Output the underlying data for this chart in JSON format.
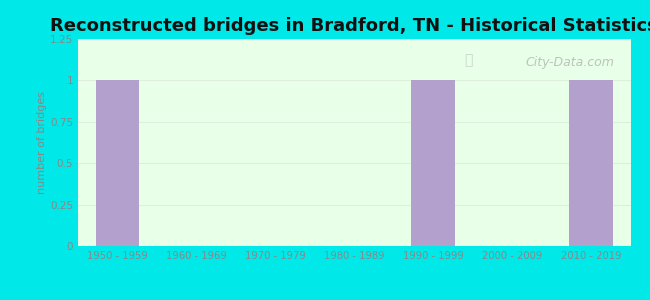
{
  "title": "Reconstructed bridges in Bradford, TN - Historical Statistics",
  "categories": [
    "1950 - 1959",
    "1960 - 1969",
    "1970 - 1979",
    "1980 - 1989",
    "1990 - 1999",
    "2000 - 2009",
    "2010 - 2019"
  ],
  "values": [
    1,
    0,
    0,
    0,
    1,
    0,
    1
  ],
  "bar_color": "#b3a0cc",
  "ylabel": "number of bridges",
  "ylim": [
    0,
    1.25
  ],
  "yticks": [
    0,
    0.25,
    0.5,
    0.75,
    1,
    1.25
  ],
  "ytick_labels": [
    "0",
    "0.25",
    "0.5",
    "0.75",
    "1",
    "1.25"
  ],
  "bg_outer": "#00e8e8",
  "bg_inner_top": "#e8ffe8",
  "bg_inner_bottom": "#f8fff8",
  "title_fontsize": 13,
  "title_color": "#111111",
  "tick_color": "#888888",
  "ylabel_color": "#888888",
  "bar_width": 0.55,
  "watermark": "City-Data.com",
  "watermark_color": "#aaaaaa",
  "grid_color": "#ddeedd"
}
